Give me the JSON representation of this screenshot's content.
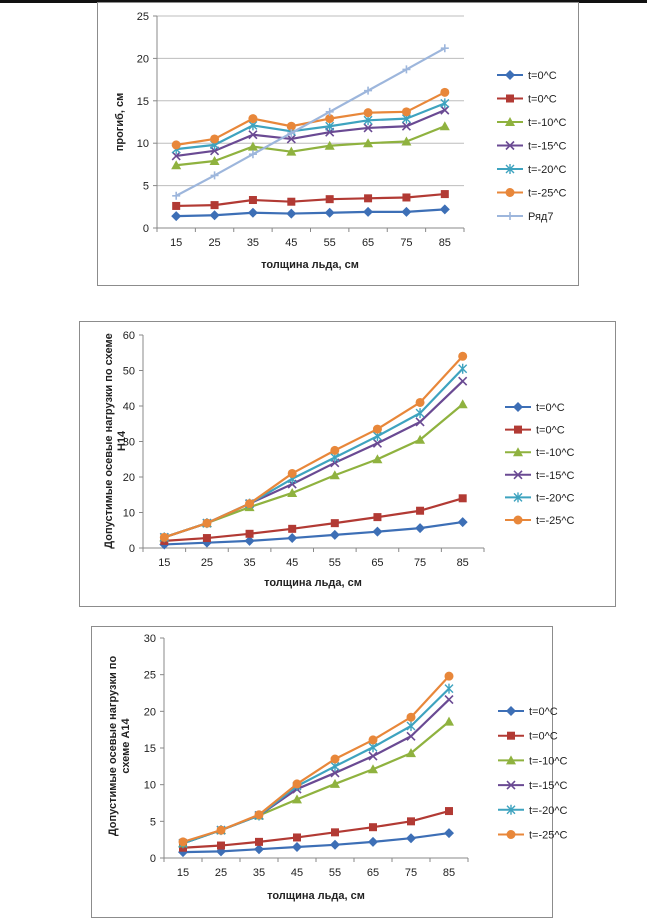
{
  "chart_data": [
    {
      "type": "line",
      "xlabel": "толщина льда, см",
      "ylabel": "прогиб, см",
      "ylim": [
        0,
        25
      ],
      "yticks": [
        0,
        5,
        10,
        15,
        20,
        25
      ],
      "categories": [
        "15",
        "25",
        "35",
        "45",
        "55",
        "65",
        "75",
        "85"
      ],
      "grid": true,
      "legend": "right",
      "series": [
        {
          "name": "t=0^C",
          "color": "#3d6fb6",
          "marker": "diamond",
          "values": [
            1.4,
            1.5,
            1.8,
            1.7,
            1.8,
            1.9,
            1.9,
            2.2
          ]
        },
        {
          "name": "t=0^C",
          "color": "#b23a34",
          "marker": "square",
          "values": [
            2.6,
            2.7,
            3.3,
            3.1,
            3.4,
            3.5,
            3.6,
            4.0
          ]
        },
        {
          "name": "t=-10^C",
          "color": "#8fb23f",
          "marker": "triangle",
          "values": [
            7.4,
            7.9,
            9.6,
            9.0,
            9.7,
            10.0,
            10.2,
            12.0
          ]
        },
        {
          "name": "t=-15^C",
          "color": "#6a4a93",
          "marker": "x",
          "values": [
            8.5,
            9.1,
            11.0,
            10.5,
            11.3,
            11.8,
            12.0,
            13.9
          ]
        },
        {
          "name": "t=-20^C",
          "color": "#3ea3bf",
          "marker": "star",
          "values": [
            9.3,
            9.8,
            12.1,
            11.4,
            12.0,
            12.7,
            12.9,
            14.7
          ]
        },
        {
          "name": "t=-25^C",
          "color": "#e8873a",
          "marker": "circle",
          "values": [
            9.8,
            10.5,
            12.9,
            12.0,
            12.9,
            13.6,
            13.7,
            16.0
          ]
        },
        {
          "name": "Ряд7",
          "color": "#9db6dc",
          "marker": "plus",
          "values": [
            3.8,
            6.2,
            8.7,
            11.2,
            13.7,
            16.2,
            18.7,
            21.2
          ]
        }
      ]
    },
    {
      "type": "line",
      "xlabel": "толщина льда, см",
      "ylabel": "Допустимые осевые нагрузки по схеме Н14",
      "ylim": [
        0,
        60
      ],
      "yticks": [
        0,
        10,
        20,
        30,
        40,
        50,
        60
      ],
      "categories": [
        "15",
        "25",
        "35",
        "45",
        "55",
        "65",
        "75",
        "85"
      ],
      "grid": false,
      "legend": "right",
      "series": [
        {
          "name": "t=0^C",
          "color": "#3d6fb6",
          "marker": "diamond",
          "values": [
            1.0,
            1.5,
            2.0,
            2.8,
            3.7,
            4.6,
            5.6,
            7.3
          ]
        },
        {
          "name": "t=0^C",
          "color": "#b23a34",
          "marker": "square",
          "values": [
            2.0,
            2.8,
            4.0,
            5.4,
            7.0,
            8.7,
            10.5,
            14.0
          ]
        },
        {
          "name": "t=-10^C",
          "color": "#8fb23f",
          "marker": "triangle",
          "values": [
            3.0,
            7.0,
            11.5,
            15.5,
            20.5,
            25.0,
            30.5,
            40.5
          ]
        },
        {
          "name": "t=-15^C",
          "color": "#6a4a93",
          "marker": "x",
          "values": [
            3.0,
            7.0,
            12.5,
            18.0,
            24.0,
            29.5,
            35.5,
            47.0
          ]
        },
        {
          "name": "t=-20^C",
          "color": "#3ea3bf",
          "marker": "star",
          "values": [
            3.0,
            7.0,
            12.5,
            19.5,
            25.5,
            31.5,
            38.0,
            50.5
          ]
        },
        {
          "name": "t=-25^C",
          "color": "#e8873a",
          "marker": "circle",
          "values": [
            3.0,
            7.0,
            12.5,
            21.0,
            27.5,
            33.5,
            41.0,
            54.0
          ]
        }
      ]
    },
    {
      "type": "line",
      "xlabel": "толщина льда, см",
      "ylabel": "Допустимые осевые нагрузки по схеме А14",
      "ylim": [
        0,
        30
      ],
      "yticks": [
        0,
        5,
        10,
        15,
        20,
        25,
        30
      ],
      "categories": [
        "15",
        "25",
        "35",
        "45",
        "55",
        "65",
        "75",
        "85"
      ],
      "grid": false,
      "legend": "right",
      "series": [
        {
          "name": "t=0^C",
          "color": "#3d6fb6",
          "marker": "diamond",
          "values": [
            0.8,
            0.9,
            1.2,
            1.5,
            1.8,
            2.2,
            2.7,
            3.4
          ]
        },
        {
          "name": "t=0^C",
          "color": "#b23a34",
          "marker": "square",
          "values": [
            1.4,
            1.7,
            2.2,
            2.8,
            3.5,
            4.2,
            5.0,
            6.4
          ]
        },
        {
          "name": "t=-10^C",
          "color": "#8fb23f",
          "marker": "triangle",
          "values": [
            2.0,
            3.8,
            5.8,
            8.0,
            10.1,
            12.1,
            14.3,
            18.6
          ]
        },
        {
          "name": "t=-15^C",
          "color": "#6a4a93",
          "marker": "x",
          "values": [
            2.0,
            3.8,
            5.8,
            9.4,
            11.6,
            13.9,
            16.6,
            21.6
          ]
        },
        {
          "name": "t=-20^C",
          "color": "#3ea3bf",
          "marker": "star",
          "values": [
            2.0,
            3.8,
            5.8,
            9.8,
            12.5,
            15.1,
            18.0,
            23.1
          ]
        },
        {
          "name": "t=-25^C",
          "color": "#e8873a",
          "marker": "circle",
          "values": [
            2.2,
            3.8,
            5.9,
            10.1,
            13.5,
            16.1,
            19.2,
            24.8
          ]
        }
      ]
    }
  ]
}
